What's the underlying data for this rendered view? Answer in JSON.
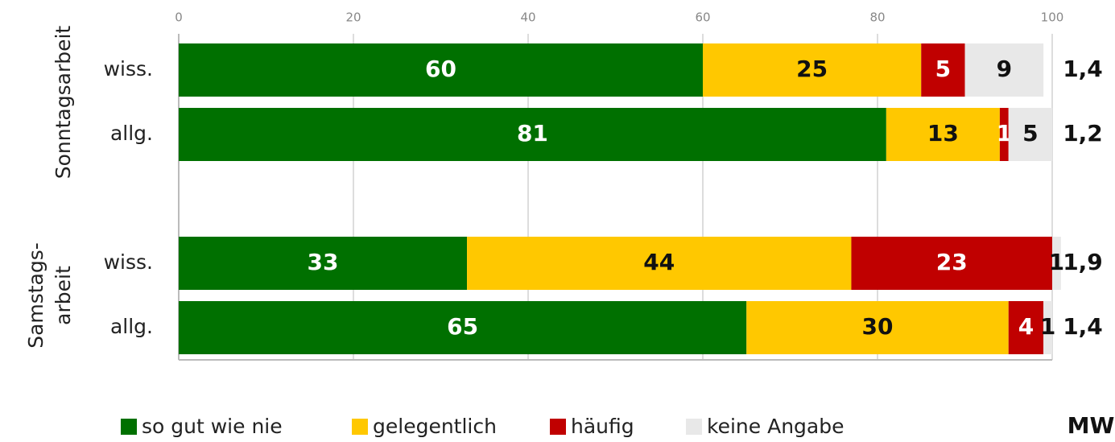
{
  "chart_data": {
    "type": "stacked_barh",
    "groups": [
      {
        "label": [
          "Sonntagsarbeit"
        ],
        "categories": [
          "wiss.",
          "allg."
        ]
      },
      {
        "label": [
          "Samstags-",
          "arbeit"
        ],
        "categories": [
          "wiss.",
          "allg."
        ]
      }
    ],
    "series": [
      {
        "name": "so gut wie nie",
        "color": "#007000",
        "label_color": "#ffffff",
        "values": [
          60,
          81,
          33,
          65
        ]
      },
      {
        "name": "gelegentlich",
        "color": "#ffc800",
        "label_color": "#111111",
        "values": [
          25,
          13,
          44,
          30
        ]
      },
      {
        "name": "häufig",
        "color": "#c00000",
        "label_color": "#ffffff",
        "values": [
          5,
          1,
          23,
          4
        ]
      },
      {
        "name": "keine Angabe",
        "color": "#e8e8e8",
        "label_color": "#111111",
        "values": [
          9,
          5,
          1,
          1
        ]
      }
    ],
    "mw_label": "MW",
    "mw_values": [
      1.4,
      1.2,
      1.9,
      1.4
    ],
    "mw_value_labels": [
      "1,4",
      "1,2",
      "1,9",
      "1,4"
    ],
    "xlim": [
      0,
      100
    ],
    "xticks": [
      0,
      20,
      40,
      60,
      80,
      100
    ],
    "grid": true
  }
}
